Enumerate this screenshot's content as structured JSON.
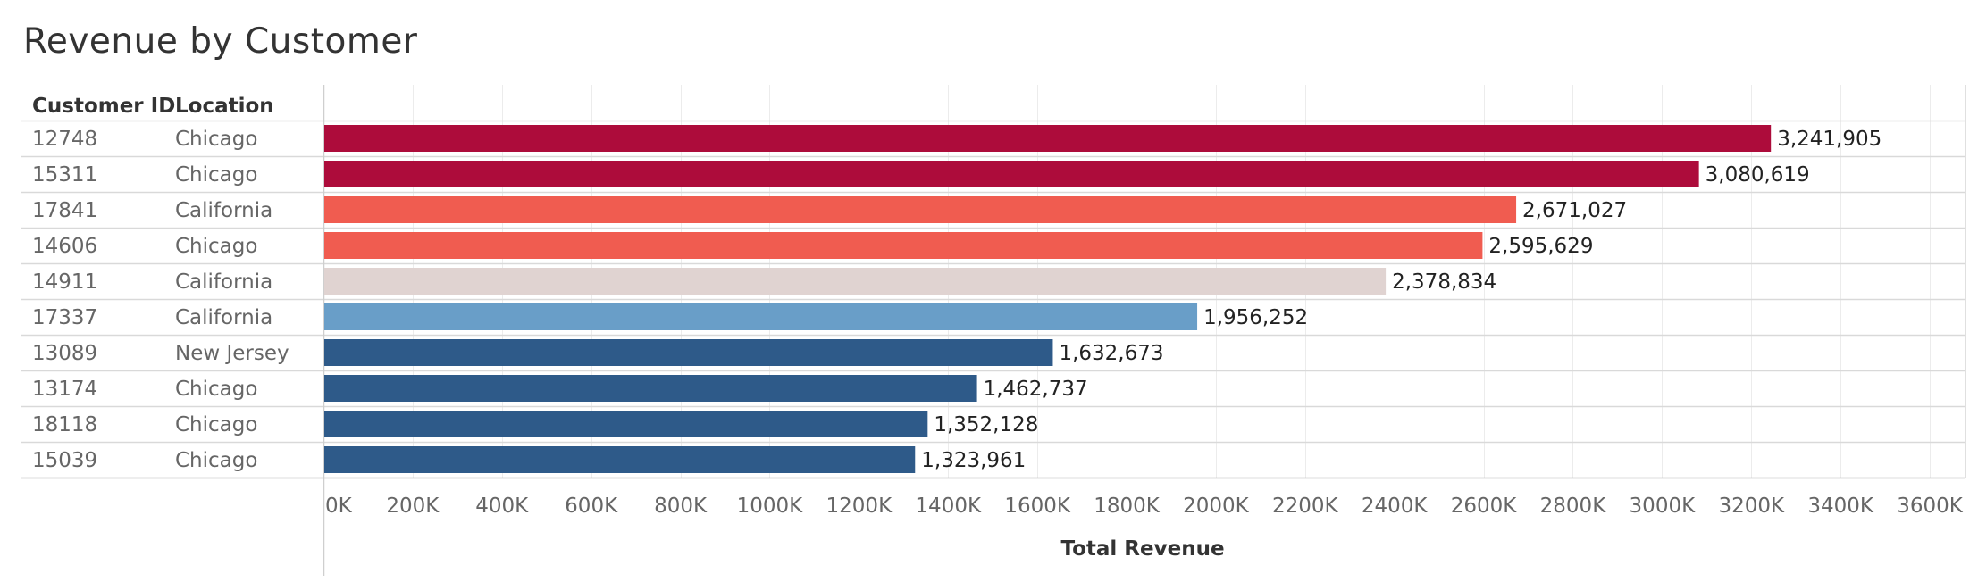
{
  "title": "Revenue by Customer",
  "chart_data": {
    "type": "bar",
    "orientation": "horizontal",
    "title": "Revenue by Customer",
    "columns": [
      "Customer ID",
      "Location"
    ],
    "rows": [
      {
        "customer_id": "12748",
        "location": "Chicago",
        "value": 3241905,
        "label": "3,241,905",
        "color": "#ad0c3b"
      },
      {
        "customer_id": "15311",
        "location": "Chicago",
        "value": 3080619,
        "label": "3,080,619",
        "color": "#ad0c3b"
      },
      {
        "customer_id": "17841",
        "location": "California",
        "value": 2671027,
        "label": "2,671,027",
        "color": "#f05c50"
      },
      {
        "customer_id": "14606",
        "location": "Chicago",
        "value": 2595629,
        "label": "2,595,629",
        "color": "#f05c50"
      },
      {
        "customer_id": "14911",
        "location": "California",
        "value": 2378834,
        "label": "2,378,834",
        "color": "#e0d3d1"
      },
      {
        "customer_id": "17337",
        "location": "California",
        "value": 1956252,
        "label": "1,956,252",
        "color": "#699ec8"
      },
      {
        "customer_id": "13089",
        "location": "New Jersey",
        "value": 1632673,
        "label": "1,632,673",
        "color": "#2e5a89"
      },
      {
        "customer_id": "13174",
        "location": "Chicago",
        "value": 1462737,
        "label": "1,462,737",
        "color": "#2e5a89"
      },
      {
        "customer_id": "18118",
        "location": "Chicago",
        "value": 1352128,
        "label": "1,352,128",
        "color": "#2e5a89"
      },
      {
        "customer_id": "15039",
        "location": "Chicago",
        "value": 1323961,
        "label": "1,323,961",
        "color": "#2e5a89"
      }
    ],
    "x_ticks": [
      {
        "value": 0,
        "label": "0K"
      },
      {
        "value": 200000,
        "label": "200K"
      },
      {
        "value": 400000,
        "label": "400K"
      },
      {
        "value": 600000,
        "label": "600K"
      },
      {
        "value": 800000,
        "label": "800K"
      },
      {
        "value": 1000000,
        "label": "1000K"
      },
      {
        "value": 1200000,
        "label": "1200K"
      },
      {
        "value": 1400000,
        "label": "1400K"
      },
      {
        "value": 1600000,
        "label": "1600K"
      },
      {
        "value": 1800000,
        "label": "1800K"
      },
      {
        "value": 2000000,
        "label": "2000K"
      },
      {
        "value": 2200000,
        "label": "2200K"
      },
      {
        "value": 2400000,
        "label": "2400K"
      },
      {
        "value": 2600000,
        "label": "2600K"
      },
      {
        "value": 2800000,
        "label": "2800K"
      },
      {
        "value": 3000000,
        "label": "3000K"
      },
      {
        "value": 3200000,
        "label": "3200K"
      },
      {
        "value": 3400000,
        "label": "3400K"
      },
      {
        "value": 3600000,
        "label": "3600K"
      }
    ],
    "xlabel": "Total Revenue",
    "ylabel": "",
    "xlim": [
      0,
      3680000
    ],
    "grid": true,
    "legend": "none"
  }
}
